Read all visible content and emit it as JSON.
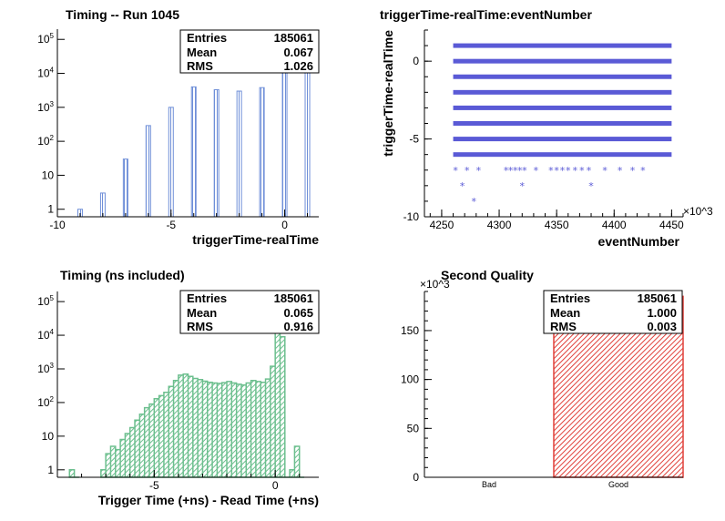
{
  "chart_data": [
    {
      "type": "bar",
      "title": "Timing -- Run 1045",
      "xlabel": "triggerTime-realTime",
      "ylabel": "",
      "xlim": [
        -10,
        1.5
      ],
      "ylim_log": [
        0.6,
        200000
      ],
      "log_y": true,
      "x_ticks": [
        "-10",
        "-5",
        "0"
      ],
      "y_ticks": [
        "1",
        "10",
        "10^2",
        "10^3",
        "10^4",
        "10^5"
      ],
      "bars": [
        {
          "x": -9,
          "value": 1
        },
        {
          "x": -8,
          "value": 3
        },
        {
          "x": -7,
          "value": 30
        },
        {
          "x": -6,
          "value": 290
        },
        {
          "x": -5,
          "value": 1000
        },
        {
          "x": -4,
          "value": 4000
        },
        {
          "x": -3,
          "value": 3300
        },
        {
          "x": -2,
          "value": 3000
        },
        {
          "x": -1,
          "value": 3800
        },
        {
          "x": 0,
          "value": 110000
        },
        {
          "x": 1,
          "value": 60000
        }
      ],
      "color": "#6f8fd8",
      "stats": {
        "rows": [
          {
            "label": "Entries",
            "value": "185061"
          },
          {
            "label": "Mean",
            "value": "0.067"
          },
          {
            "label": "RMS",
            "value": "1.026"
          }
        ]
      }
    },
    {
      "type": "scatter",
      "title": "triggerTime-realTime:eventNumber",
      "xlabel": "eventNumber",
      "ylabel": "triggerTime-realTime",
      "xlim": [
        4235,
        4460
      ],
      "ylim": [
        -10,
        2
      ],
      "x_ticks": [
        "4250",
        "4300",
        "4350",
        "4400",
        "4450"
      ],
      "y_ticks": [
        "-10",
        "-5",
        "0"
      ],
      "x_multiplier": "×10^3",
      "bands": [
        {
          "y": 1,
          "x": [
            4260,
            4450
          ]
        },
        {
          "y": 0,
          "x": [
            4260,
            4450
          ]
        },
        {
          "y": -1,
          "x": [
            4260,
            4450
          ]
        },
        {
          "y": -2,
          "x": [
            4260,
            4450
          ]
        },
        {
          "y": -3,
          "x": [
            4260,
            4450
          ]
        },
        {
          "y": -4,
          "x": [
            4260,
            4450
          ]
        },
        {
          "y": -5,
          "x": [
            4260,
            4450
          ]
        },
        {
          "y": -6,
          "x": [
            4260,
            4450
          ]
        }
      ],
      "points": [
        {
          "x": 4262,
          "y": -7
        },
        {
          "x": 4272,
          "y": -7
        },
        {
          "x": 4282,
          "y": -7
        },
        {
          "x": 4306,
          "y": -7
        },
        {
          "x": 4310,
          "y": -7
        },
        {
          "x": 4314,
          "y": -7
        },
        {
          "x": 4318,
          "y": -7
        },
        {
          "x": 4322,
          "y": -7
        },
        {
          "x": 4332,
          "y": -7
        },
        {
          "x": 4345,
          "y": -7
        },
        {
          "x": 4350,
          "y": -7
        },
        {
          "x": 4355,
          "y": -7
        },
        {
          "x": 4360,
          "y": -7
        },
        {
          "x": 4366,
          "y": -7
        },
        {
          "x": 4372,
          "y": -7
        },
        {
          "x": 4378,
          "y": -7
        },
        {
          "x": 4392,
          "y": -7
        },
        {
          "x": 4405,
          "y": -7
        },
        {
          "x": 4416,
          "y": -7
        },
        {
          "x": 4425,
          "y": -7
        },
        {
          "x": 4268,
          "y": -8
        },
        {
          "x": 4320,
          "y": -8
        },
        {
          "x": 4380,
          "y": -8
        },
        {
          "x": 4278,
          "y": -9
        }
      ],
      "color": "#5a5ad6"
    },
    {
      "type": "area",
      "title": "Timing (ns included)",
      "xlabel": "Trigger Time (+ns) - Read Time (+ns)",
      "ylabel": "",
      "xlim": [
        -9,
        1.8
      ],
      "ylim_log": [
        0.6,
        200000
      ],
      "log_y": true,
      "x_ticks": [
        "-5",
        "0"
      ],
      "y_ticks": [
        "1",
        "10",
        "10^2",
        "10^3",
        "10^4",
        "10^5"
      ],
      "x": [
        -8.5,
        -8.3,
        -7.2,
        -7.0,
        -6.8,
        -6.6,
        -6.4,
        -6.2,
        -6.0,
        -5.8,
        -5.6,
        -5.4,
        -5.2,
        -5.0,
        -4.8,
        -4.6,
        -4.4,
        -4.2,
        -4.0,
        -3.8,
        -3.6,
        -3.4,
        -3.2,
        -3.0,
        -2.8,
        -2.6,
        -2.4,
        -2.2,
        -2.0,
        -1.8,
        -1.6,
        -1.4,
        -1.2,
        -1.0,
        -0.8,
        -0.6,
        -0.4,
        -0.2,
        0.0,
        0.2,
        0.4,
        0.6,
        0.8,
        1.0
      ],
      "values": [
        1,
        0,
        1,
        3,
        5,
        4,
        8,
        12,
        18,
        30,
        45,
        70,
        90,
        130,
        160,
        200,
        300,
        450,
        650,
        700,
        600,
        520,
        480,
        430,
        400,
        380,
        370,
        390,
        420,
        380,
        350,
        330,
        380,
        450,
        420,
        400,
        500,
        1200,
        15000,
        9000,
        0,
        1,
        5,
        0
      ],
      "color": "#6cbf8e",
      "stats": {
        "rows": [
          {
            "label": "Entries",
            "value": "185061"
          },
          {
            "label": "Mean",
            "value": "0.065"
          },
          {
            "label": "RMS",
            "value": "0.916"
          }
        ]
      }
    },
    {
      "type": "bar",
      "title": "Second Quality",
      "xlabel": "",
      "ylabel": "",
      "categories": [
        "Bad",
        "Good"
      ],
      "values": [
        0,
        185
      ],
      "ylim": [
        0,
        190
      ],
      "y_ticks": [
        "0",
        "50",
        "100",
        "150"
      ],
      "y_multiplier": "×10^3",
      "color": "#e0403a",
      "stats": {
        "rows": [
          {
            "label": "Entries",
            "value": "185061"
          },
          {
            "label": "Mean",
            "value": "1.000"
          },
          {
            "label": "RMS",
            "value": "0.003"
          }
        ]
      }
    }
  ]
}
